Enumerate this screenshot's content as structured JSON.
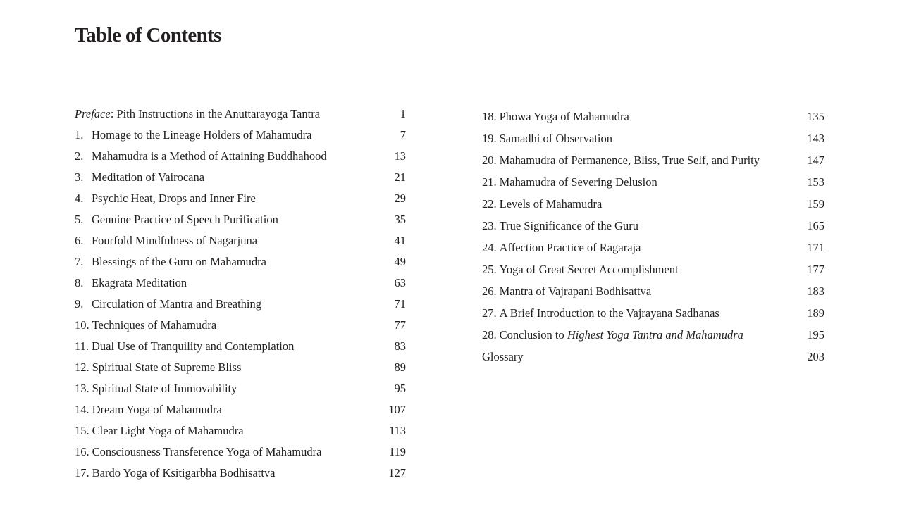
{
  "title": "Table of Contents",
  "preface": {
    "label": "Preface",
    "title": ": Pith Instructions in the Anuttarayoga Tantra",
    "page": "1"
  },
  "left_entries": [
    {
      "num": "1.",
      "title": "Homage to the Lineage Holders of Mahamudra",
      "page": "7"
    },
    {
      "num": "2.",
      "title": "Mahamudra is a Method of Attaining Buddhahood",
      "page": "13"
    },
    {
      "num": "3.",
      "title": "Meditation of Vairocana",
      "page": "21"
    },
    {
      "num": "4.",
      "title": "Psychic Heat, Drops and Inner Fire",
      "page": "29"
    },
    {
      "num": "5.",
      "title": "Genuine Practice of Speech Purification",
      "page": "35"
    },
    {
      "num": "6.",
      "title": "Fourfold Mindfulness of Nagarjuna",
      "page": "41"
    },
    {
      "num": "7.",
      "title": "Blessings of the Guru on Mahamudra",
      "page": "49"
    },
    {
      "num": "8.",
      "title": "Ekagrata Meditation",
      "page": "63"
    },
    {
      "num": "9.",
      "title": "Circulation of Mantra and Breathing",
      "page": "71"
    },
    {
      "num": "10.",
      "title": "Techniques of Mahamudra",
      "page": "77"
    },
    {
      "num": "11.",
      "title": "Dual Use of Tranquility and Contemplation",
      "page": "83"
    },
    {
      "num": "12.",
      "title": "Spiritual State of Supreme Bliss",
      "page": "89"
    },
    {
      "num": "13.",
      "title": "Spiritual State of Immovability",
      "page": "95"
    },
    {
      "num": "14.",
      "title": "Dream Yoga of Mahamudra",
      "page": "107"
    },
    {
      "num": "15.",
      "title": "Clear Light Yoga of Mahamudra",
      "page": "113"
    },
    {
      "num": "16.",
      "title": "Consciousness Transference Yoga of Mahamudra",
      "page": "119"
    },
    {
      "num": "17.",
      "title": "Bardo Yoga of Ksitigarbha Bodhisattva",
      "page": "127"
    }
  ],
  "right_entries": [
    {
      "num": "18.",
      "title": "Phowa Yoga of Mahamudra",
      "page": "135"
    },
    {
      "num": "19.",
      "title": "Samadhi of Observation",
      "page": "143"
    },
    {
      "num": "20.",
      "title": "Mahamudra of Permanence, Bliss, True Self, and Purity",
      "page": "147"
    },
    {
      "num": "21.",
      "title": "Mahamudra of Severing Delusion",
      "page": "153"
    },
    {
      "num": "22.",
      "title": "Levels of Mahamudra",
      "page": "159"
    },
    {
      "num": "23.",
      "title": "True Significance of the Guru",
      "page": "165"
    },
    {
      "num": "24.",
      "title": "Affection Practice of Ragaraja",
      "page": "171"
    },
    {
      "num": "25.",
      "title": "Yoga of Great Secret Accomplishment",
      "page": "177"
    },
    {
      "num": "26.",
      "title": "Mantra of Vajrapani Bodhisattva",
      "page": "183"
    },
    {
      "num": "27.",
      "title": "A Brief Introduction to the Vajrayana Sadhanas",
      "page": "189"
    }
  ],
  "conclusion": {
    "num": "28.",
    "title": "Conclusion to ",
    "title_italic": "Highest Yoga Tantra and Mahamudra",
    "page": "195"
  },
  "glossary": {
    "title": "Glossary",
    "page": "203"
  }
}
